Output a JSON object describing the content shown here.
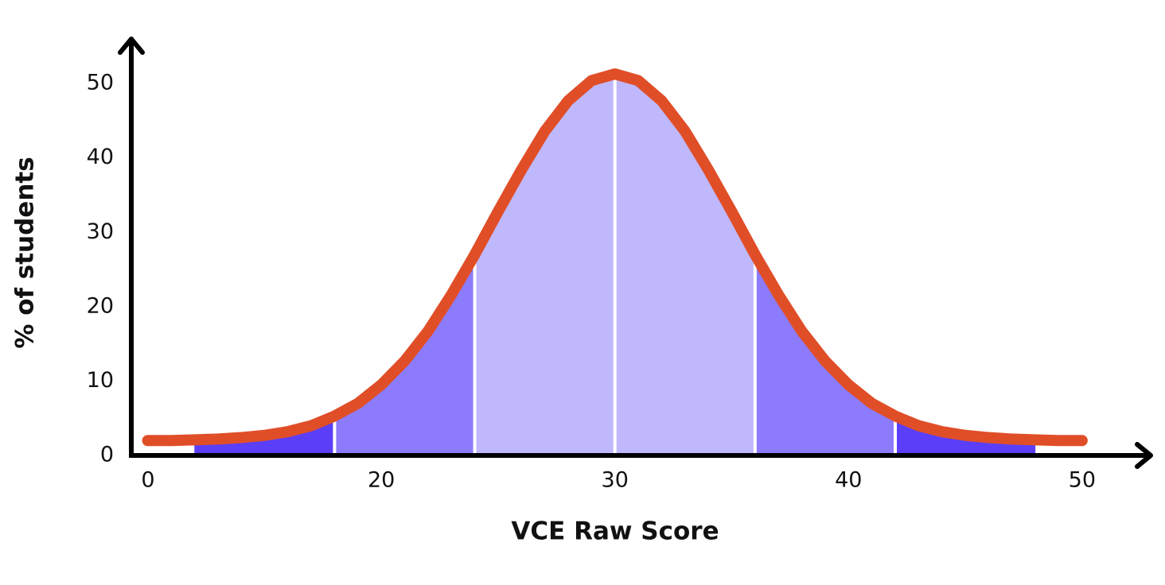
{
  "chart_data": {
    "type": "area",
    "x_label": "VCE Raw Score",
    "y_label": "% of students",
    "x_origin_label": "0",
    "xlim": [
      9.3,
      52.9
    ],
    "xticks": [
      20,
      30,
      40,
      50
    ],
    "ylim": [
      0,
      56
    ],
    "yticks": [
      0,
      10,
      20,
      30,
      40,
      50
    ],
    "x": [
      10,
      11,
      12,
      13,
      14,
      15,
      16,
      17,
      18,
      19,
      20,
      21,
      22,
      23,
      24,
      25,
      26,
      27,
      28,
      29,
      30,
      31,
      32,
      33,
      34,
      35,
      36,
      37,
      38,
      39,
      40,
      41,
      42,
      43,
      44,
      45,
      46,
      47,
      48,
      49,
      50
    ],
    "series": [
      {
        "color": "#e04e28",
        "values": [
          2.0,
          2.0,
          2.1,
          2.2,
          2.4,
          2.7,
          3.2,
          4.0,
          5.3,
          7.0,
          9.5,
          12.7,
          16.7,
          21.6,
          27.0,
          32.8,
          38.4,
          43.6,
          47.7,
          50.4,
          51.3,
          50.4,
          47.7,
          43.6,
          38.4,
          32.8,
          27.0,
          21.6,
          16.7,
          12.7,
          9.5,
          7.0,
          5.3,
          4.0,
          3.2,
          2.7,
          2.4,
          2.2,
          2.1,
          2.0,
          2.0
        ]
      }
    ],
    "bands": [
      {
        "from": 12,
        "to": 18,
        "color": "#5b3ff8"
      },
      {
        "from": 18,
        "to": 24,
        "color": "#8c7bfc"
      },
      {
        "from": 24,
        "to": 30,
        "color": "#c0b8fd"
      },
      {
        "from": 30,
        "to": 36,
        "color": "#c0b8fd"
      },
      {
        "from": 36,
        "to": 42,
        "color": "#8c7bfc"
      },
      {
        "from": 42,
        "to": 48,
        "color": "#5b3ff8"
      }
    ]
  }
}
